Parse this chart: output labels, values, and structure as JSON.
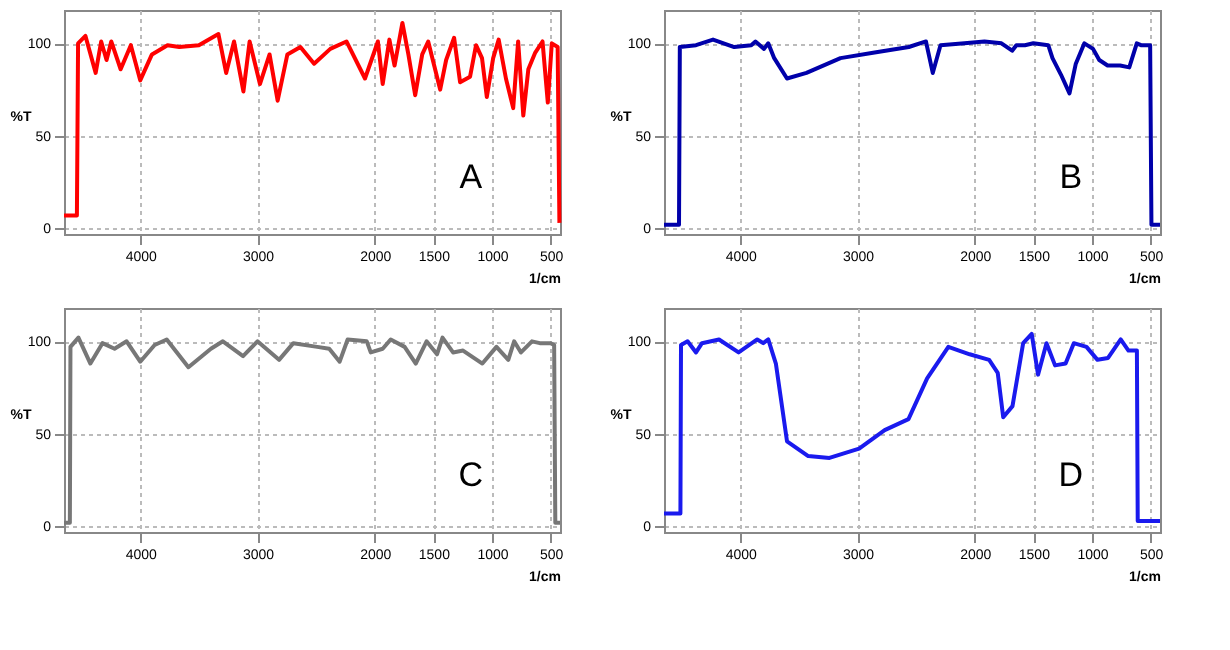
{
  "chart_data": [
    {
      "type": "line",
      "xlabel": "1/cm",
      "ylabel": "%T",
      "xlim": [
        4650,
        420
      ],
      "xticks": [
        4000,
        3000,
        2000,
        1500,
        1000,
        500
      ],
      "ylim": [
        -3,
        118
      ],
      "yticks": [
        0,
        50,
        100
      ],
      "grid": true,
      "annotations": [
        "A"
      ],
      "color": "#ff0000",
      "x": [
        4650,
        4540,
        4530,
        4467,
        4380,
        4333,
        4287,
        4247,
        4167,
        4080,
        4000,
        3900,
        3767,
        3667,
        3500,
        3333,
        3267,
        3200,
        3120,
        3067,
        2979,
        2897,
        2828,
        2745,
        2634,
        2517,
        2379,
        2241,
        2083,
        1973,
        1932,
        1875,
        1831,
        1764,
        1713,
        1655,
        1595,
        1544,
        1493,
        1442,
        1391,
        1323,
        1272,
        1187,
        1136,
        1085,
        1044,
        990,
        943,
        881,
        819,
        777,
        733,
        690,
        631,
        569,
        524,
        490,
        440,
        425
      ],
      "values": [
        7,
        7,
        100,
        104,
        84,
        101,
        91,
        101,
        86,
        99,
        80,
        94,
        99,
        98,
        99,
        105,
        84,
        101,
        74,
        101,
        78,
        94,
        69,
        94,
        98,
        89,
        97,
        101,
        81,
        101,
        78,
        102,
        88,
        111,
        94,
        72,
        94,
        101,
        88,
        75,
        91,
        103,
        79,
        82,
        99,
        92,
        71,
        92,
        102,
        81,
        65,
        101,
        61,
        86,
        95,
        101,
        68,
        100,
        98,
        3
      ]
    },
    {
      "type": "line",
      "xlabel": "1/cm",
      "ylabel": "%T",
      "xlim": [
        4650,
        420
      ],
      "xticks": [
        4000,
        3000,
        2000,
        1500,
        1000,
        500
      ],
      "ylim": [
        -3,
        118
      ],
      "yticks": [
        0,
        50,
        100
      ],
      "grid": true,
      "annotations": [
        "B"
      ],
      "color": "#0000aa",
      "x": [
        4650,
        4522,
        4515,
        4377,
        4232,
        4051,
        3906,
        3870,
        3797,
        3761,
        3710,
        3601,
        3435,
        3145,
        2854,
        2562,
        2416,
        2358,
        2292,
        2088,
        1917,
        1772,
        1681,
        1645,
        1572,
        1500,
        1373,
        1337,
        1264,
        1192,
        1138,
        1065,
        991,
        938,
        867,
        760,
        682,
        618,
        582,
        504,
        493,
        420
      ],
      "values": [
        2,
        2,
        98,
        99,
        102,
        98,
        99,
        101,
        97,
        100,
        92,
        81,
        84,
        92,
        95,
        98,
        101,
        84,
        99,
        100,
        101,
        100,
        96,
        99,
        99,
        100,
        99,
        92,
        83,
        73,
        89,
        100,
        97,
        91,
        88,
        88,
        87,
        100,
        99,
        99,
        2,
        2
      ]
    },
    {
      "type": "line",
      "xlabel": "1/cm",
      "ylabel": "%T",
      "xlim": [
        4650,
        420
      ],
      "xticks": [
        4000,
        3000,
        2000,
        1500,
        1000,
        500
      ],
      "ylim": [
        -3,
        118
      ],
      "yticks": [
        0,
        50,
        100
      ],
      "grid": true,
      "annotations": [
        "C"
      ],
      "color": "#777777",
      "x": [
        4650,
        4600,
        4595,
        4527,
        4425,
        4322,
        4219,
        4116,
        4000,
        3877,
        3774,
        3589,
        3397,
        3295,
        3123,
        3000,
        2816,
        2694,
        2490,
        2388,
        2299,
        2231,
        2068,
        2034,
        1932,
        1864,
        1745,
        1650,
        1558,
        1469,
        1422,
        1332,
        1247,
        1082,
        962,
        861,
        811,
        753,
        659,
        592,
        500,
        470,
        460,
        420
      ],
      "values": [
        2,
        2,
        97,
        102,
        88,
        99,
        96,
        100,
        89,
        98,
        101,
        86,
        96,
        100,
        92,
        100,
        90,
        99,
        97,
        96,
        89,
        101,
        100,
        94,
        96,
        101,
        97,
        88,
        100,
        93,
        102,
        94,
        95,
        88,
        97,
        90,
        100,
        94,
        100,
        99,
        99,
        98,
        2,
        2
      ]
    },
    {
      "type": "line",
      "xlabel": "1/cm",
      "ylabel": "%T",
      "xlim": [
        4650,
        420
      ],
      "xticks": [
        4000,
        3000,
        2000,
        1500,
        1000,
        500
      ],
      "ylim": [
        -3,
        118
      ],
      "yticks": [
        0,
        50,
        100
      ],
      "grid": true,
      "annotations": [
        "D"
      ],
      "color": "#1a1aee",
      "x": [
        4650,
        4510,
        4505,
        4449,
        4377,
        4326,
        4181,
        4014,
        3855,
        3804,
        3761,
        3696,
        3601,
        3420,
        3239,
        2986,
        2768,
        2565,
        2406,
        2225,
        2043,
        1877,
        1804,
        1757,
        1678,
        1587,
        1514,
        1460,
        1388,
        1315,
        1225,
        1155,
        1047,
        953,
        863,
        755,
        689,
        617,
        610,
        420
      ],
      "values": [
        7,
        7,
        98,
        100,
        94,
        99,
        101,
        94,
        101,
        99,
        101,
        88,
        46,
        38,
        37,
        42,
        52,
        58,
        80,
        97,
        93,
        90,
        83,
        59,
        65,
        99,
        104,
        82,
        99,
        87,
        88,
        99,
        97,
        90,
        91,
        101,
        95,
        95,
        3,
        3
      ]
    }
  ]
}
